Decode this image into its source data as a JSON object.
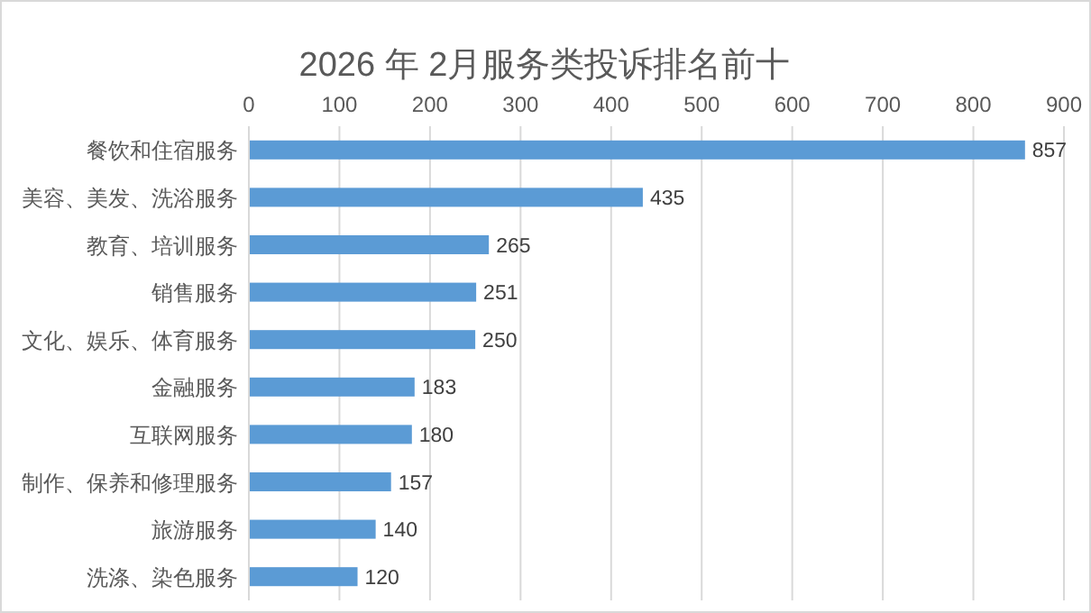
{
  "chart_data": {
    "type": "bar",
    "orientation": "horizontal",
    "title": "2026 年 2月服务类投诉排名前十",
    "categories": [
      "餐饮和住宿服务",
      "美容、美发、洗浴服务",
      "教育、培训服务",
      "销售服务",
      "文化、娱乐、体育服务",
      "金融服务",
      "互联网服务",
      "制作、保养和修理服务",
      "旅游服务",
      "洗涤、染色服务"
    ],
    "values": [
      857,
      435,
      265,
      251,
      250,
      183,
      180,
      157,
      140,
      120
    ],
    "color": "#5b9bd5",
    "xlim": [
      0,
      900
    ],
    "xticks": [
      0,
      100,
      200,
      300,
      400,
      500,
      600,
      700,
      800,
      900
    ],
    "grid": "x",
    "data_labels": true
  }
}
